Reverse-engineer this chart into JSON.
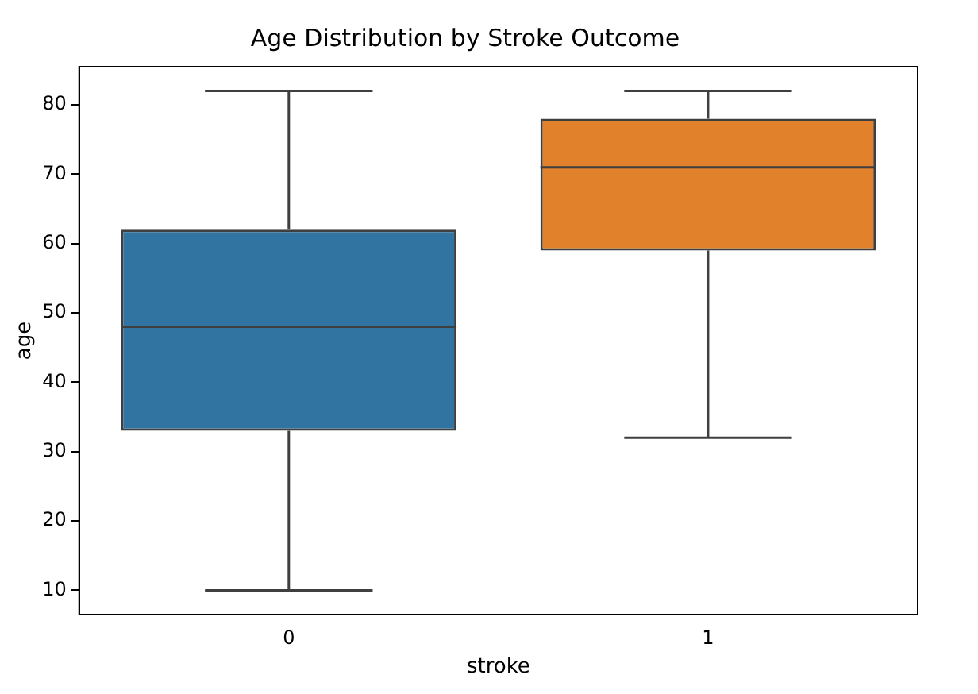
{
  "chart_data": {
    "type": "box",
    "title": "Age Distribution by Stroke Outcome",
    "xlabel": "stroke",
    "ylabel": "age",
    "categories": [
      "0",
      "1"
    ],
    "colors": [
      "#3274a1",
      "#e1812c"
    ],
    "boxes": [
      {
        "low": 10,
        "q1": 33,
        "median": 48,
        "q3": 62,
        "high": 82
      },
      {
        "low": 32,
        "q1": 59,
        "median": 71,
        "q3": 78,
        "high": 82
      }
    ],
    "ylim": [
      6.5,
      85.5
    ],
    "yticks": [
      10,
      20,
      30,
      40,
      50,
      60,
      70,
      80
    ],
    "grid": false,
    "legend": false
  }
}
